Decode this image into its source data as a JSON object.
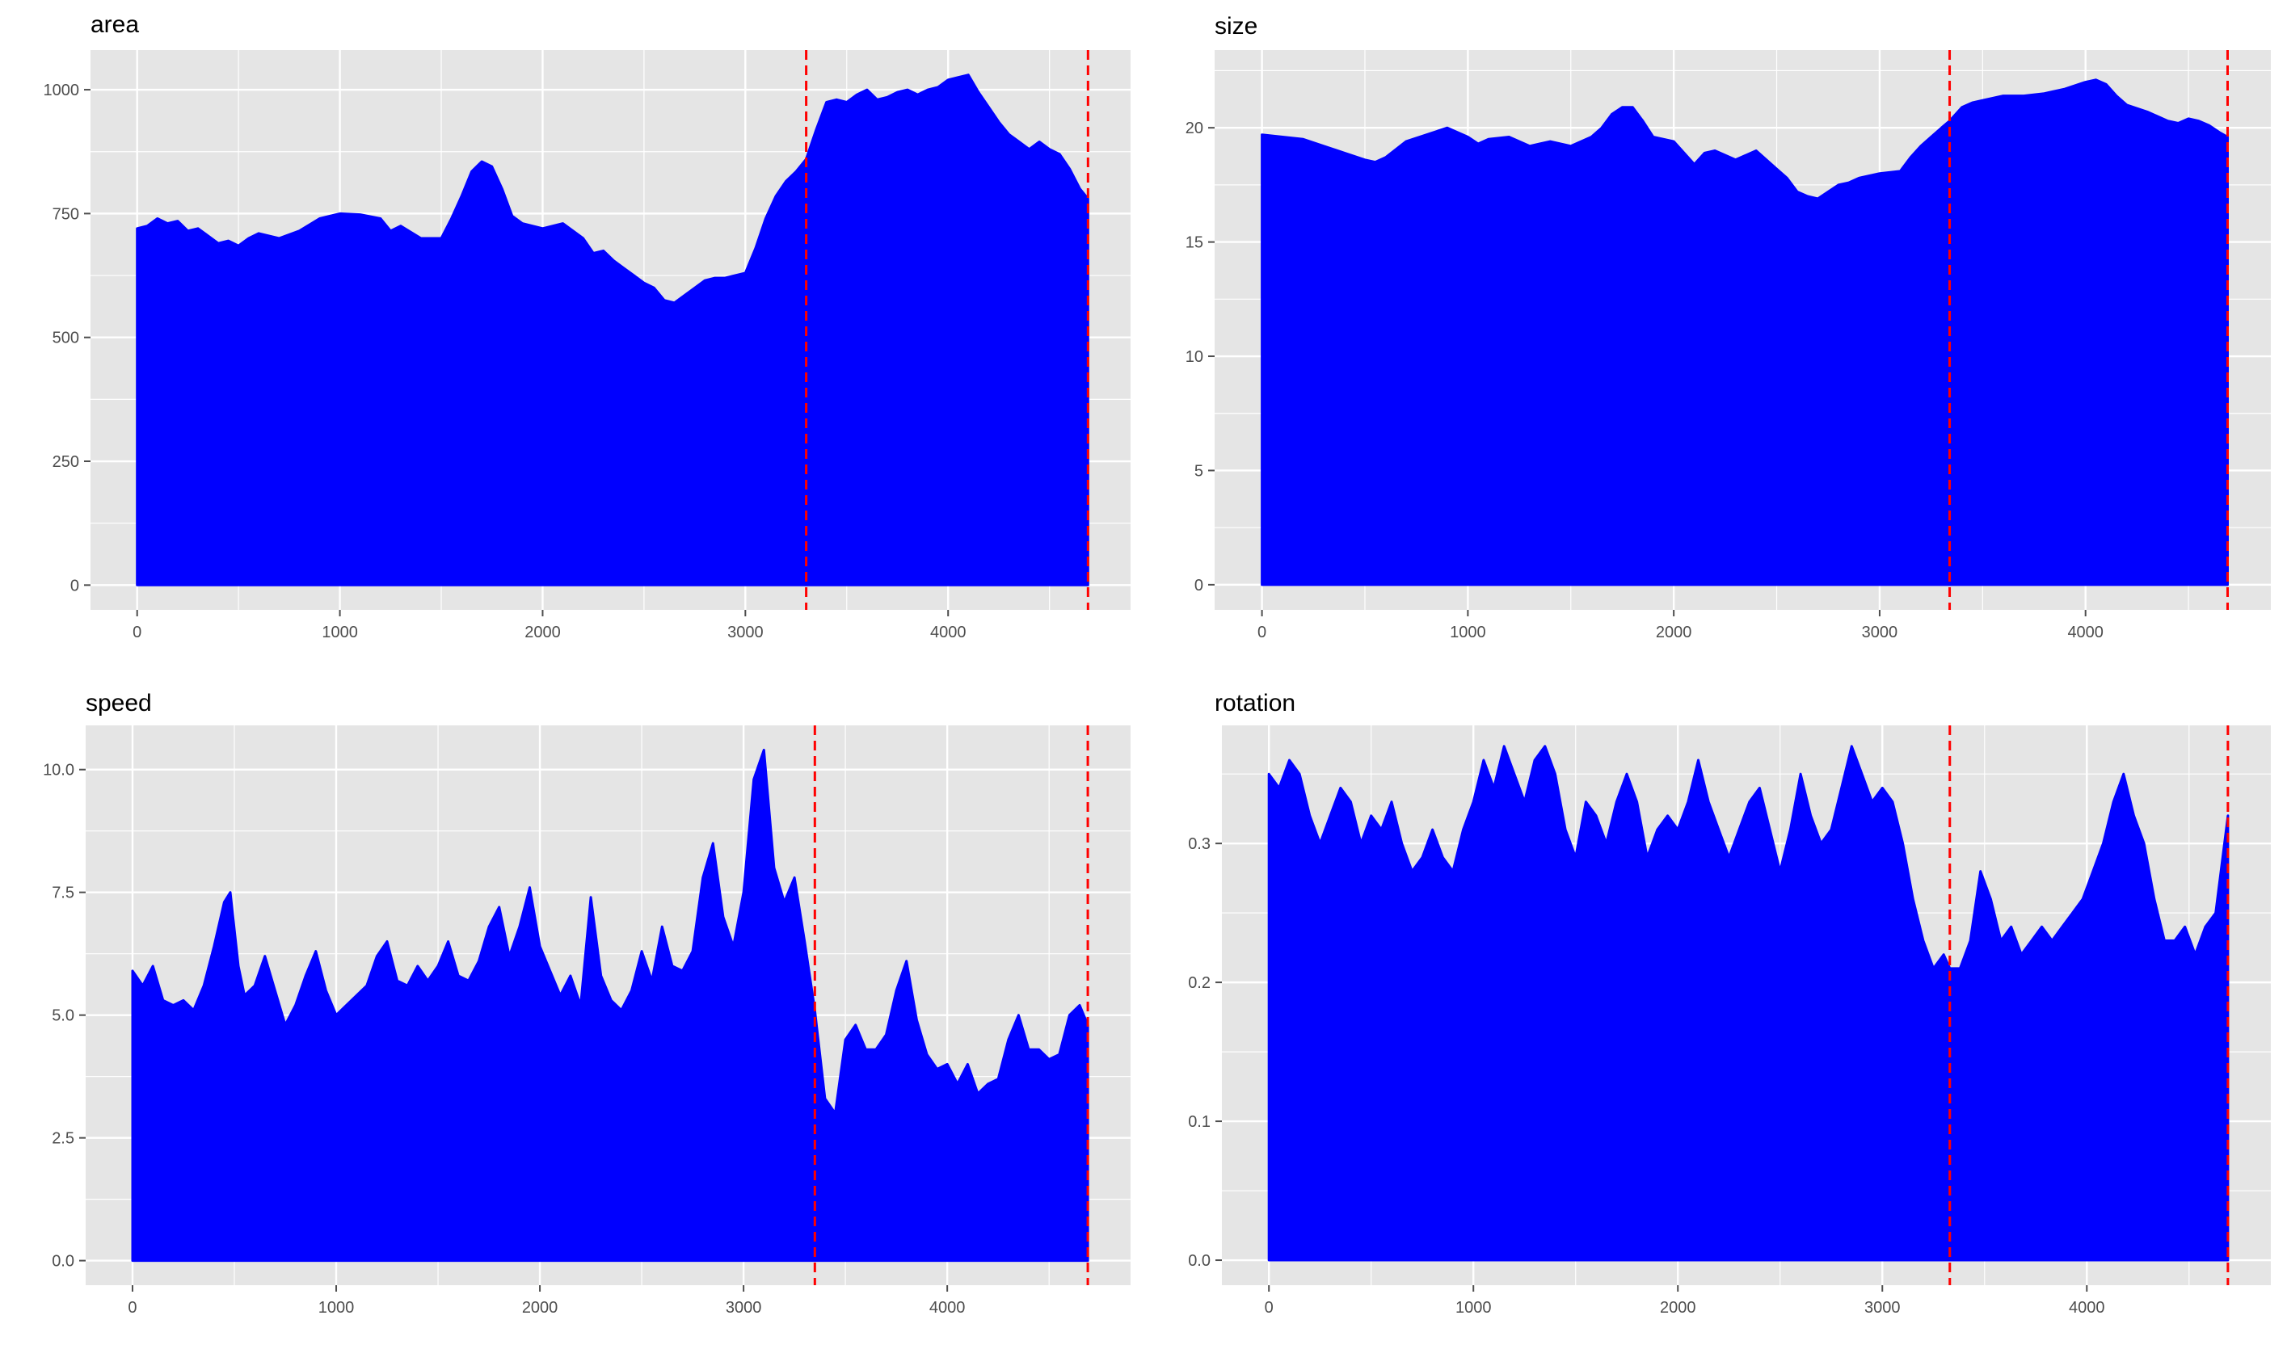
{
  "figure": {
    "background": "#ffffff",
    "panel_background": "#e5e5e5",
    "grid_color": "#ffffff",
    "area_color": "#0000ff",
    "marker_color": "#ff0000",
    "tick_color": "#4d4d4d"
  },
  "chart_data": [
    {
      "type": "area",
      "title": "area",
      "xlim": [
        -230,
        4900
      ],
      "ylim": [
        -50,
        1080
      ],
      "x_ticks": [
        0,
        1000,
        2000,
        3000,
        4000
      ],
      "x_tick_labels": [
        "0",
        "1000",
        "2000",
        "3000",
        "4000"
      ],
      "y_ticks": [
        0,
        250,
        500,
        750,
        1000
      ],
      "y_tick_labels": [
        "0",
        "250",
        "500",
        "750",
        "1000"
      ],
      "vlines": [
        3300,
        4690
      ],
      "x": [
        0,
        50,
        100,
        150,
        200,
        250,
        300,
        350,
        400,
        450,
        500,
        550,
        600,
        700,
        800,
        900,
        1000,
        1100,
        1200,
        1250,
        1300,
        1400,
        1500,
        1550,
        1600,
        1650,
        1700,
        1750,
        1800,
        1850,
        1900,
        1950,
        2000,
        2050,
        2100,
        2200,
        2250,
        2300,
        2350,
        2400,
        2450,
        2500,
        2550,
        2600,
        2650,
        2700,
        2750,
        2800,
        2850,
        2900,
        2950,
        3000,
        3050,
        3100,
        3150,
        3200,
        3250,
        3300,
        3350,
        3400,
        3450,
        3500,
        3550,
        3600,
        3650,
        3700,
        3750,
        3800,
        3850,
        3900,
        3950,
        4000,
        4050,
        4100,
        4150,
        4200,
        4250,
        4300,
        4350,
        4400,
        4450,
        4500,
        4550,
        4600,
        4650,
        4690
      ],
      "values": [
        720,
        725,
        740,
        730,
        735,
        715,
        720,
        705,
        690,
        695,
        685,
        700,
        710,
        700,
        715,
        740,
        750,
        748,
        740,
        715,
        725,
        700,
        700,
        740,
        785,
        835,
        855,
        845,
        800,
        745,
        730,
        725,
        720,
        725,
        730,
        700,
        670,
        675,
        655,
        640,
        625,
        610,
        600,
        575,
        570,
        585,
        600,
        615,
        620,
        620,
        625,
        630,
        680,
        740,
        785,
        815,
        835,
        860,
        920,
        975,
        980,
        975,
        990,
        1000,
        980,
        985,
        995,
        1000,
        990,
        1000,
        1005,
        1020,
        1025,
        1030,
        995,
        965,
        935,
        910,
        895,
        880,
        895,
        880,
        870,
        840,
        800,
        780
      ]
    },
    {
      "type": "area",
      "title": "size",
      "xlim": [
        -230,
        4900
      ],
      "ylim": [
        -1.1,
        23.4
      ],
      "x_ticks": [
        0,
        1000,
        2000,
        3000,
        4000
      ],
      "x_tick_labels": [
        "0",
        "1000",
        "2000",
        "3000",
        "4000"
      ],
      "y_ticks": [
        0,
        5,
        10,
        15,
        20
      ],
      "y_tick_labels": [
        "0",
        "5",
        "10",
        "15",
        "20"
      ],
      "vlines": [
        3340,
        4690
      ],
      "x": [
        0,
        100,
        200,
        300,
        400,
        500,
        550,
        600,
        700,
        800,
        900,
        1000,
        1050,
        1100,
        1200,
        1300,
        1400,
        1500,
        1600,
        1650,
        1700,
        1750,
        1800,
        1850,
        1900,
        2000,
        2100,
        2150,
        2200,
        2300,
        2400,
        2500,
        2550,
        2600,
        2650,
        2700,
        2750,
        2800,
        2850,
        2900,
        3000,
        3100,
        3150,
        3200,
        3250,
        3300,
        3340,
        3400,
        3450,
        3500,
        3600,
        3700,
        3800,
        3900,
        4000,
        4050,
        4100,
        4150,
        4200,
        4300,
        4400,
        4450,
        4500,
        4550,
        4600,
        4650,
        4690
      ],
      "values": [
        19.7,
        19.6,
        19.5,
        19.2,
        18.9,
        18.6,
        18.5,
        18.7,
        19.4,
        19.7,
        20.0,
        19.6,
        19.3,
        19.5,
        19.6,
        19.2,
        19.4,
        19.2,
        19.6,
        20.0,
        20.6,
        20.9,
        20.9,
        20.3,
        19.6,
        19.4,
        18.4,
        18.9,
        19.0,
        18.6,
        19.0,
        18.2,
        17.8,
        17.2,
        17.0,
        16.9,
        17.2,
        17.5,
        17.6,
        17.8,
        18.0,
        18.1,
        18.7,
        19.2,
        19.6,
        20.0,
        20.3,
        20.9,
        21.1,
        21.2,
        21.4,
        21.4,
        21.5,
        21.7,
        22.0,
        22.1,
        21.9,
        21.4,
        21.0,
        20.7,
        20.3,
        20.2,
        20.4,
        20.3,
        20.1,
        19.8,
        19.6
      ]
    },
    {
      "type": "area",
      "title": "speed",
      "xlim": [
        -230,
        4900
      ],
      "ylim": [
        -0.5,
        10.9
      ],
      "x_ticks": [
        0,
        1000,
        2000,
        3000,
        4000
      ],
      "x_tick_labels": [
        "0",
        "1000",
        "2000",
        "3000",
        "4000"
      ],
      "y_ticks": [
        0.0,
        2.5,
        5.0,
        7.5,
        10.0
      ],
      "y_tick_labels": [
        "0.0",
        "2.5",
        "5.0",
        "7.5",
        "10.0"
      ],
      "vlines": [
        3350,
        4690
      ],
      "x": [
        0,
        50,
        100,
        150,
        200,
        250,
        300,
        350,
        400,
        450,
        480,
        520,
        550,
        600,
        650,
        700,
        750,
        800,
        850,
        900,
        950,
        1000,
        1050,
        1100,
        1150,
        1200,
        1250,
        1300,
        1350,
        1400,
        1450,
        1500,
        1550,
        1600,
        1650,
        1700,
        1750,
        1800,
        1850,
        1900,
        1950,
        2000,
        2050,
        2100,
        2150,
        2200,
        2250,
        2300,
        2350,
        2400,
        2450,
        2500,
        2550,
        2600,
        2650,
        2700,
        2750,
        2800,
        2850,
        2900,
        2950,
        3000,
        3050,
        3100,
        3150,
        3200,
        3250,
        3300,
        3350,
        3400,
        3450,
        3500,
        3550,
        3600,
        3650,
        3700,
        3750,
        3800,
        3850,
        3900,
        3950,
        4000,
        4050,
        4100,
        4150,
        4200,
        4250,
        4300,
        4350,
        4400,
        4450,
        4500,
        4550,
        4600,
        4650,
        4690
      ],
      "values": [
        5.9,
        5.6,
        6.0,
        5.3,
        5.2,
        5.3,
        5.1,
        5.6,
        6.4,
        7.3,
        7.5,
        6.0,
        5.4,
        5.6,
        6.2,
        5.5,
        4.8,
        5.2,
        5.8,
        6.3,
        5.5,
        5.0,
        5.2,
        5.4,
        5.6,
        6.2,
        6.5,
        5.7,
        5.6,
        6.0,
        5.7,
        6.0,
        6.5,
        5.8,
        5.7,
        6.1,
        6.8,
        7.2,
        6.2,
        6.8,
        7.6,
        6.4,
        5.9,
        5.4,
        5.8,
        5.2,
        7.4,
        5.8,
        5.3,
        5.1,
        5.5,
        6.3,
        5.7,
        6.8,
        6.0,
        5.9,
        6.3,
        7.8,
        8.5,
        7.0,
        6.4,
        7.5,
        9.8,
        10.4,
        8.0,
        7.3,
        7.8,
        6.5,
        5.1,
        3.3,
        3.0,
        4.5,
        4.8,
        4.3,
        4.3,
        4.6,
        5.5,
        6.1,
        4.9,
        4.2,
        3.9,
        4.0,
        3.6,
        4.0,
        3.4,
        3.6,
        3.7,
        4.5,
        5.0,
        4.3,
        4.3,
        4.1,
        4.2,
        5.0,
        5.2,
        4.8
      ]
    },
    {
      "type": "area",
      "title": "rotation",
      "xlim": [
        -230,
        4900
      ],
      "ylim": [
        -0.018,
        0.385
      ],
      "x_ticks": [
        0,
        1000,
        2000,
        3000,
        4000
      ],
      "x_tick_labels": [
        "0",
        "1000",
        "2000",
        "3000",
        "4000"
      ],
      "y_ticks": [
        0.0,
        0.1,
        0.2,
        0.3
      ],
      "y_tick_labels": [
        "0.0",
        "0.1",
        "0.2",
        "0.3"
      ],
      "vlines": [
        3330,
        4690
      ],
      "x": [
        0,
        50,
        100,
        150,
        200,
        250,
        300,
        350,
        400,
        450,
        500,
        550,
        600,
        650,
        700,
        750,
        800,
        850,
        900,
        950,
        1000,
        1050,
        1100,
        1150,
        1200,
        1250,
        1300,
        1350,
        1400,
        1450,
        1500,
        1550,
        1600,
        1650,
        1700,
        1750,
        1800,
        1850,
        1900,
        1950,
        2000,
        2050,
        2100,
        2150,
        2200,
        2250,
        2300,
        2350,
        2400,
        2450,
        2500,
        2550,
        2600,
        2650,
        2700,
        2750,
        2800,
        2850,
        2900,
        2950,
        3000,
        3050,
        3100,
        3150,
        3200,
        3250,
        3300,
        3330,
        3380,
        3430,
        3480,
        3530,
        3580,
        3630,
        3680,
        3730,
        3780,
        3830,
        3880,
        3930,
        3980,
        4030,
        4080,
        4130,
        4180,
        4230,
        4280,
        4330,
        4380,
        4430,
        4480,
        4530,
        4580,
        4630,
        4690
      ],
      "values": [
        0.35,
        0.34,
        0.36,
        0.35,
        0.32,
        0.3,
        0.32,
        0.34,
        0.33,
        0.3,
        0.32,
        0.31,
        0.33,
        0.3,
        0.28,
        0.29,
        0.31,
        0.29,
        0.28,
        0.31,
        0.33,
        0.36,
        0.34,
        0.37,
        0.35,
        0.33,
        0.36,
        0.37,
        0.35,
        0.31,
        0.29,
        0.33,
        0.32,
        0.3,
        0.33,
        0.35,
        0.33,
        0.29,
        0.31,
        0.32,
        0.31,
        0.33,
        0.36,
        0.33,
        0.31,
        0.29,
        0.31,
        0.33,
        0.34,
        0.31,
        0.28,
        0.31,
        0.35,
        0.32,
        0.3,
        0.31,
        0.34,
        0.37,
        0.35,
        0.33,
        0.34,
        0.33,
        0.3,
        0.26,
        0.23,
        0.21,
        0.22,
        0.21,
        0.21,
        0.23,
        0.28,
        0.26,
        0.23,
        0.24,
        0.22,
        0.23,
        0.24,
        0.23,
        0.24,
        0.25,
        0.26,
        0.28,
        0.3,
        0.33,
        0.35,
        0.32,
        0.3,
        0.26,
        0.23,
        0.23,
        0.24,
        0.22,
        0.24,
        0.25,
        0.32
      ]
    }
  ]
}
